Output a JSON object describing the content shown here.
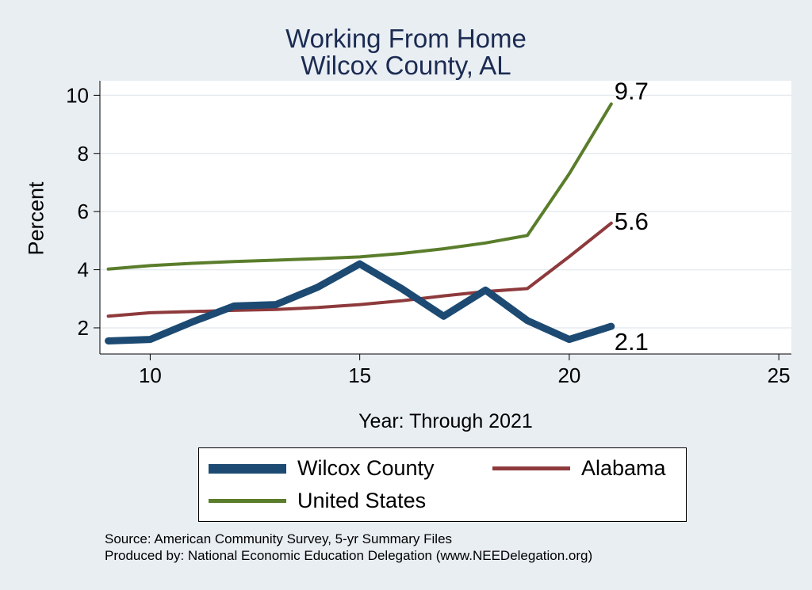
{
  "chart_data": {
    "type": "line",
    "title": "Working From Home",
    "subtitle": "Wilcox County, AL",
    "xlabel": "Year: Through 2021",
    "ylabel": "Percent",
    "xlim": [
      8.8,
      25.3
    ],
    "ylim": [
      1.1,
      10.5
    ],
    "xticks": [
      10,
      15,
      20,
      25
    ],
    "yticks": [
      2,
      4,
      6,
      8,
      10
    ],
    "grid": true,
    "legend_position": "bottom",
    "series": [
      {
        "name": "Wilcox County",
        "color": "#1c4a72",
        "x": [
          9,
          10,
          11,
          12,
          13,
          14,
          15,
          16,
          17,
          18,
          19,
          20,
          21
        ],
        "y": [
          1.55,
          1.6,
          2.2,
          2.75,
          2.8,
          3.4,
          4.2,
          3.35,
          2.4,
          3.3,
          2.25,
          1.6,
          2.05
        ],
        "end_label": "2.1"
      },
      {
        "name": "Alabama",
        "color": "#8e3a3c",
        "x": [
          9,
          10,
          11,
          12,
          13,
          14,
          15,
          16,
          17,
          18,
          19,
          20,
          21
        ],
        "y": [
          2.4,
          2.52,
          2.56,
          2.6,
          2.63,
          2.7,
          2.8,
          2.93,
          3.1,
          3.25,
          3.35,
          4.45,
          5.6
        ],
        "end_label": "5.6"
      },
      {
        "name": "United States",
        "color": "#5a7d2b",
        "x": [
          9,
          10,
          11,
          12,
          13,
          14,
          15,
          16,
          17,
          18,
          19,
          20,
          21
        ],
        "y": [
          4.02,
          4.14,
          4.22,
          4.28,
          4.33,
          4.38,
          4.44,
          4.56,
          4.72,
          4.92,
          5.18,
          7.3,
          9.7
        ],
        "end_label": "9.7"
      }
    ]
  },
  "legend": {
    "wilcox": "Wilcox County",
    "alabama": "Alabama",
    "us": "United States"
  },
  "footer": {
    "source": "Source: American Community Survey, 5-yr Summary Files",
    "produced_by": "Produced by: National Economic Education Delegation (www.NEEDelegation.org)"
  }
}
